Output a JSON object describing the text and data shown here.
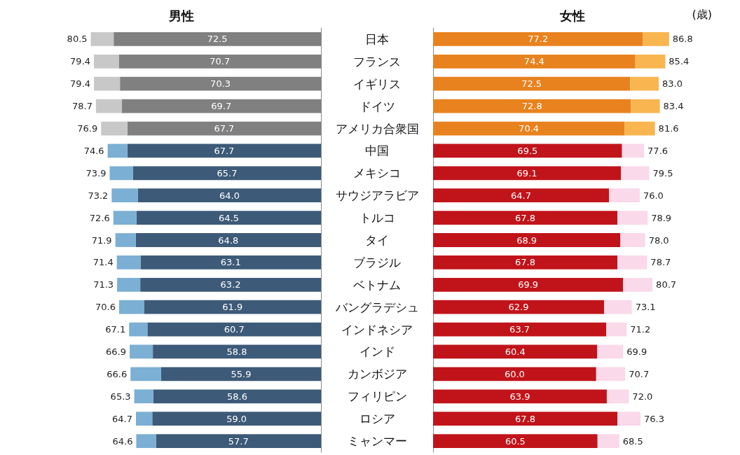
{
  "chart_data": [
    {
      "type": "bar",
      "title": "男性",
      "orientation": "horizontal",
      "stacked": true,
      "tick_labels": "y",
      "categories": [
        "日本",
        "フランス",
        "イギリス",
        "ドイツ",
        "アメリカ合衆国",
        "中国",
        "メキシコ",
        "サウジアラビア",
        "トルコ",
        "タイ",
        "ブラジル",
        "ベトナム",
        "バングラデシュ",
        "インドネシア",
        "インド",
        "カンボジア",
        "フィリピン",
        "ロシア",
        "ミャンマー"
      ],
      "series": [
        {
          "color": "#808080",
          "values": [
            72.5,
            70.7,
            70.3,
            69.7,
            67.7,
            null,
            null,
            null,
            null,
            null,
            null,
            null,
            null,
            null,
            null,
            null,
            null,
            null,
            null
          ],
          "value_labels": [
            "72.5",
            "70.7",
            "70.3",
            "69.7",
            "67.7",
            null,
            null,
            null,
            null,
            null,
            null,
            null,
            null,
            null,
            null,
            null,
            null,
            null,
            null
          ]
        },
        {
          "color": "#3d5a78",
          "values": [
            null,
            null,
            null,
            null,
            null,
            67.7,
            65.7,
            64.0,
            64.5,
            64.8,
            63.1,
            63.2,
            61.9,
            60.7,
            58.8,
            55.9,
            58.6,
            59.0,
            57.7
          ],
          "value_labels": [
            null,
            null,
            null,
            null,
            null,
            "67.7",
            "65.7",
            "64.0",
            "64.5",
            "64.8",
            "63.1",
            "63.2",
            "61.9",
            "60.7",
            "58.8",
            "55.9",
            "58.6",
            "59.0",
            "57.7"
          ]
        },
        {
          "color": "#c8c8c8",
          "values": [
            8.0,
            8.7,
            9.1,
            9.0,
            9.2,
            null,
            null,
            null,
            null,
            null,
            null,
            null,
            null,
            null,
            null,
            null,
            null,
            null,
            null
          ]
        },
        {
          "color": "#7bafd4",
          "values": [
            null,
            null,
            null,
            null,
            null,
            6.9,
            8.2,
            9.2,
            8.1,
            7.1,
            8.3,
            8.1,
            8.7,
            6.4,
            8.1,
            10.7,
            6.7,
            5.7,
            6.9
          ]
        }
      ],
      "totals": [
        "80.5",
        "79.4",
        "79.4",
        "78.7",
        "76.9",
        "74.6",
        "73.9",
        "73.2",
        "72.6",
        "71.9",
        "71.4",
        "71.3",
        "70.6",
        "67.1",
        "66.9",
        "66.6",
        "65.3",
        "64.7",
        "64.6"
      ]
    },
    {
      "type": "bar",
      "title": "女性",
      "orientation": "horizontal",
      "stacked": true,
      "tick_labels": false,
      "annotations": [
        "(歳)"
      ],
      "categories": [
        null,
        null,
        null,
        null,
        null,
        null,
        null,
        null,
        null,
        null,
        null,
        null,
        null,
        null,
        null,
        null,
        null,
        null,
        null
      ],
      "series": [
        {
          "color": "#e8821e",
          "values": [
            77.2,
            74.4,
            72.5,
            72.8,
            70.4,
            null,
            null,
            null,
            null,
            null,
            null,
            null,
            null,
            null,
            null,
            null,
            null,
            null,
            null
          ],
          "value_labels": [
            "77.2",
            "74.4",
            "72.5",
            "72.8",
            "70.4",
            null,
            null,
            null,
            null,
            null,
            null,
            null,
            null,
            null,
            null,
            null,
            null,
            null,
            null
          ]
        },
        {
          "color": "#c0141a",
          "values": [
            null,
            null,
            null,
            null,
            null,
            69.5,
            69.1,
            64.7,
            67.8,
            68.9,
            67.8,
            69.9,
            62.9,
            63.7,
            60.4,
            60.0,
            63.9,
            67.8,
            60.5
          ],
          "value_labels": [
            null,
            null,
            null,
            null,
            null,
            "69.5",
            "69.1",
            "64.7",
            "67.8",
            "68.9",
            "67.8",
            "69.9",
            "62.9",
            "63.7",
            "60.4",
            "60.0",
            "63.9",
            "67.8",
            "60.5"
          ]
        },
        {
          "color": "#f8b550",
          "values": [
            9.6,
            11.0,
            10.5,
            10.6,
            11.2,
            null,
            null,
            null,
            null,
            null,
            null,
            null,
            null,
            null,
            null,
            null,
            null,
            null,
            null
          ]
        },
        {
          "color": "#f9d9ea",
          "values": [
            null,
            null,
            null,
            null,
            null,
            8.1,
            10.4,
            11.3,
            11.1,
            9.1,
            10.9,
            10.8,
            10.2,
            7.5,
            9.5,
            10.7,
            8.1,
            8.5,
            8.0
          ]
        }
      ],
      "totals": [
        "86.8",
        "85.4",
        "83.0",
        "83.4",
        "81.6",
        "77.6",
        "79.5",
        "76.0",
        "78.9",
        "78.0",
        "78.7",
        "80.7",
        "73.1",
        "71.2",
        "69.9",
        "70.7",
        "72.0",
        "76.3",
        "68.5"
      ]
    }
  ]
}
